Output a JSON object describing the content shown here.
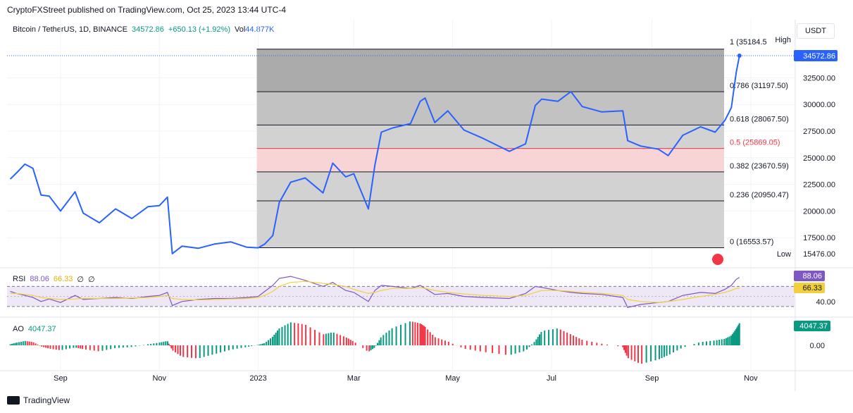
{
  "header": {
    "publisher_line": "CryptoFXStreet published on TradingView.com, Oct 25, 2023 13:44 UTC-4"
  },
  "legend": {
    "symbol": "Bitcoin / TetherUS, 1D, BINANCE",
    "last": "34572.86",
    "change": "+650.13 (+1.92%)",
    "vol_label": "Vol",
    "vol_value": "44.877K"
  },
  "currency": "USDT",
  "footer": {
    "brand": "TradingView"
  },
  "colors": {
    "price_line": "#2962ff",
    "rsi_line": "#7e57c2",
    "rsi_ma": "#f2d03b",
    "ao_up": "#089981",
    "ao_down": "#f23645",
    "fib_band_pink": "#f8d2d4"
  },
  "chart_data": [
    {
      "type": "line",
      "series": [
        {
          "name": "BTCUSDT",
          "x": [
            "2022-08-01",
            "2022-08-05",
            "2022-08-10",
            "2022-08-15",
            "2022-08-20",
            "2022-08-25",
            "2022-09-01",
            "2022-09-10",
            "2022-09-15",
            "2022-09-25",
            "2022-10-05",
            "2022-10-15",
            "2022-10-25",
            "2022-11-01",
            "2022-11-06",
            "2022-11-09",
            "2022-11-15",
            "2022-11-25",
            "2022-12-05",
            "2022-12-15",
            "2022-12-25",
            "2023-01-01",
            "2023-01-05",
            "2023-01-10",
            "2023-01-14",
            "2023-01-21",
            "2023-01-30",
            "2023-02-10",
            "2023-02-16",
            "2023-02-24",
            "2023-03-01",
            "2023-03-10",
            "2023-03-14",
            "2023-03-18",
            "2023-03-25",
            "2023-04-05",
            "2023-04-11",
            "2023-04-14",
            "2023-04-20",
            "2023-04-28",
            "2023-05-08",
            "2023-05-20",
            "2023-06-05",
            "2023-06-15",
            "2023-06-21",
            "2023-06-25",
            "2023-07-05",
            "2023-07-13",
            "2023-07-20",
            "2023-08-01",
            "2023-08-14",
            "2023-08-17",
            "2023-08-25",
            "2023-09-05",
            "2023-09-11",
            "2023-09-20",
            "2023-10-01",
            "2023-10-10",
            "2023-10-16",
            "2023-10-20",
            "2023-10-23",
            "2023-10-25"
          ],
          "values": [
            23000,
            23600,
            24400,
            24000,
            21500,
            21400,
            20000,
            21800,
            19800,
            18900,
            20200,
            19300,
            20400,
            20500,
            21300,
            16000,
            16700,
            16500,
            16900,
            17100,
            16600,
            16550,
            16900,
            17700,
            20800,
            22700,
            23100,
            21700,
            24500,
            23200,
            23500,
            20200,
            24300,
            27400,
            27800,
            28200,
            30300,
            30600,
            28300,
            29400,
            27600,
            26800,
            25600,
            26300,
            29900,
            30500,
            30300,
            31200,
            29800,
            29300,
            29400,
            26600,
            26100,
            25800,
            25200,
            27100,
            27900,
            27400,
            28500,
            29700,
            33000,
            34572
          ]
        }
      ],
      "fib_levels": [
        {
          "level": "0 (16553.57)",
          "value": 16553.57
        },
        {
          "level": "0.236 (20950.47)",
          "value": 20950.47
        },
        {
          "level": "0.382 (23670.59)",
          "value": 23670.59
        },
        {
          "level": "0.5 (25869.05)",
          "value": 25869.05
        },
        {
          "level": "0.618 (28067.50)",
          "value": 28067.5
        },
        {
          "level": "0.786 (31197.50)",
          "value": 31197.5
        },
        {
          "level": "1 (35184.5",
          "value": 35184.5
        }
      ],
      "y_ticks": [
        "32500.00",
        "30000.00",
        "27500.00",
        "25000.00",
        "22500.00",
        "20000.00",
        "17500.00"
      ],
      "y_tick_values": [
        32500,
        30000,
        27500,
        25000,
        22500,
        20000,
        17500
      ],
      "ylim": [
        15000,
        35700
      ],
      "x_ticks": [
        "Sep",
        "Nov",
        "2023",
        "Mar",
        "May",
        "Jul",
        "Sep",
        "Nov"
      ],
      "x_tick_dates": [
        "2022-09-01",
        "2022-11-01",
        "2023-01-01",
        "2023-03-01",
        "2023-05-01",
        "2023-07-01",
        "2023-09-01",
        "2023-11-01"
      ],
      "x_range": [
        "2022-07-30",
        "2023-11-28"
      ],
      "high_label": "High",
      "high_value": "",
      "low_label": "Low",
      "low_value": "15476.00",
      "last_price_label": "34572.86"
    },
    {
      "type": "line",
      "title": "RSI",
      "values_label": [
        "88.06",
        "66.33",
        "∅",
        "∅"
      ],
      "series": [
        {
          "name": "RSI",
          "values": [
            60,
            56,
            52,
            48,
            40,
            45,
            38,
            52,
            44,
            46,
            48,
            46,
            50,
            52,
            58,
            32,
            40,
            44,
            46,
            46,
            48,
            50,
            60,
            72,
            86,
            90,
            82,
            70,
            78,
            62,
            58,
            40,
            62,
            72,
            70,
            66,
            72,
            66,
            54,
            56,
            50,
            48,
            46,
            56,
            70,
            68,
            62,
            58,
            56,
            54,
            48,
            28,
            34,
            38,
            40,
            52,
            58,
            56,
            64,
            72,
            84,
            88
          ]
        },
        {
          "name": "MA",
          "values": [
            56,
            56,
            54,
            52,
            48,
            46,
            44,
            45,
            46,
            46,
            46,
            47,
            48,
            50,
            52,
            46,
            44,
            43,
            44,
            45,
            46,
            48,
            52,
            60,
            70,
            78,
            80,
            76,
            74,
            70,
            64,
            56,
            58,
            62,
            66,
            66,
            68,
            66,
            62,
            58,
            55,
            52,
            50,
            52,
            58,
            62,
            62,
            60,
            58,
            56,
            52,
            44,
            40,
            38,
            40,
            44,
            50,
            54,
            58,
            62,
            66,
            66.33
          ]
        }
      ],
      "y_tick": "40.00",
      "bands": [
        70,
        30
      ],
      "last_rsi": "88.06",
      "last_ma": "66.33"
    },
    {
      "type": "bar",
      "title": "AO",
      "values": [
        200,
        500,
        800,
        600,
        -200,
        -600,
        -900,
        -400,
        -700,
        -1100,
        -500,
        -300,
        200,
        500,
        800,
        -900,
        -2100,
        -2400,
        -1600,
        -800,
        -300,
        100,
        400,
        1600,
        3100,
        4200,
        3800,
        2000,
        2400,
        1500,
        700,
        -1200,
        -400,
        1600,
        3200,
        4400,
        4000,
        3400,
        1500,
        700,
        -600,
        -1200,
        -1800,
        -1000,
        800,
        2600,
        3100,
        2000,
        1000,
        300,
        -300,
        -2300,
        -3400,
        -2600,
        -1800,
        -400,
        600,
        900,
        1200,
        1800,
        3000,
        4047
      ],
      "y_tick": "0.00",
      "last_value": "4047.37"
    }
  ]
}
